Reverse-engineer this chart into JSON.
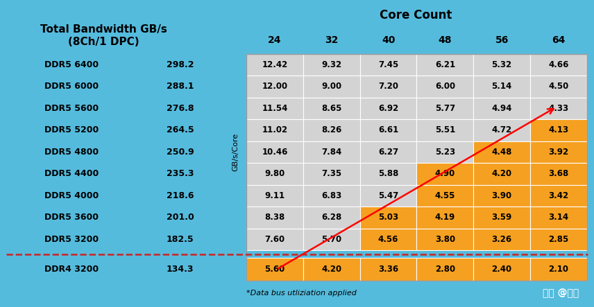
{
  "title_left": "Total Bandwidth GB/s\n(8Ch/1 DPC)",
  "title_right": "Core Count",
  "bg_color": "#55BBDD",
  "table_bg": "#D3D3D3",
  "orange_color": "#F5A020",
  "row_labels": [
    "DDR5 6400",
    "DDR5 6000",
    "DDR5 5600",
    "DDR5 5200",
    "DDR5 4800",
    "DDR5 4400",
    "DDR5 4000",
    "DDR5 3600",
    "DDR5 3200",
    "DDR4 3200"
  ],
  "bandwidth": [
    "298.2",
    "288.1",
    "276.8",
    "264.5",
    "250.9",
    "235.3",
    "218.6",
    "201.0",
    "182.5",
    "134.3"
  ],
  "col_labels": [
    "24",
    "32",
    "40",
    "48",
    "56",
    "64"
  ],
  "table_data": [
    [
      12.42,
      9.32,
      7.45,
      6.21,
      5.32,
      4.66
    ],
    [
      12.0,
      9.0,
      7.2,
      6.0,
      5.14,
      4.5
    ],
    [
      11.54,
      8.65,
      6.92,
      5.77,
      4.94,
      4.33
    ],
    [
      11.02,
      8.26,
      6.61,
      5.51,
      4.72,
      4.13
    ],
    [
      10.46,
      7.84,
      6.27,
      5.23,
      4.48,
      3.92
    ],
    [
      9.8,
      7.35,
      5.88,
      4.9,
      4.2,
      3.68
    ],
    [
      9.11,
      6.83,
      5.47,
      4.55,
      3.9,
      3.42
    ],
    [
      8.38,
      6.28,
      5.03,
      4.19,
      3.59,
      3.14
    ],
    [
      7.6,
      5.7,
      4.56,
      3.8,
      3.26,
      2.85
    ],
    [
      5.6,
      4.2,
      3.36,
      2.8,
      2.4,
      2.1
    ]
  ],
  "orange_cells": [
    [
      3,
      5
    ],
    [
      4,
      5
    ],
    [
      4,
      4
    ],
    [
      5,
      5
    ],
    [
      5,
      4
    ],
    [
      5,
      3
    ],
    [
      6,
      5
    ],
    [
      6,
      4
    ],
    [
      6,
      3
    ],
    [
      7,
      5
    ],
    [
      7,
      4
    ],
    [
      7,
      3
    ],
    [
      7,
      2
    ],
    [
      8,
      5
    ],
    [
      8,
      4
    ],
    [
      8,
      3
    ],
    [
      8,
      2
    ],
    [
      9,
      5
    ],
    [
      9,
      4
    ],
    [
      9,
      3
    ],
    [
      9,
      2
    ],
    [
      9,
      1
    ],
    [
      9,
      0
    ]
  ],
  "ylabel": "GB/s/Core",
  "footnote": "*Data bus utliziation applied",
  "watermark": "知乎 @老狼",
  "dashed_line_color": "#CC2222"
}
